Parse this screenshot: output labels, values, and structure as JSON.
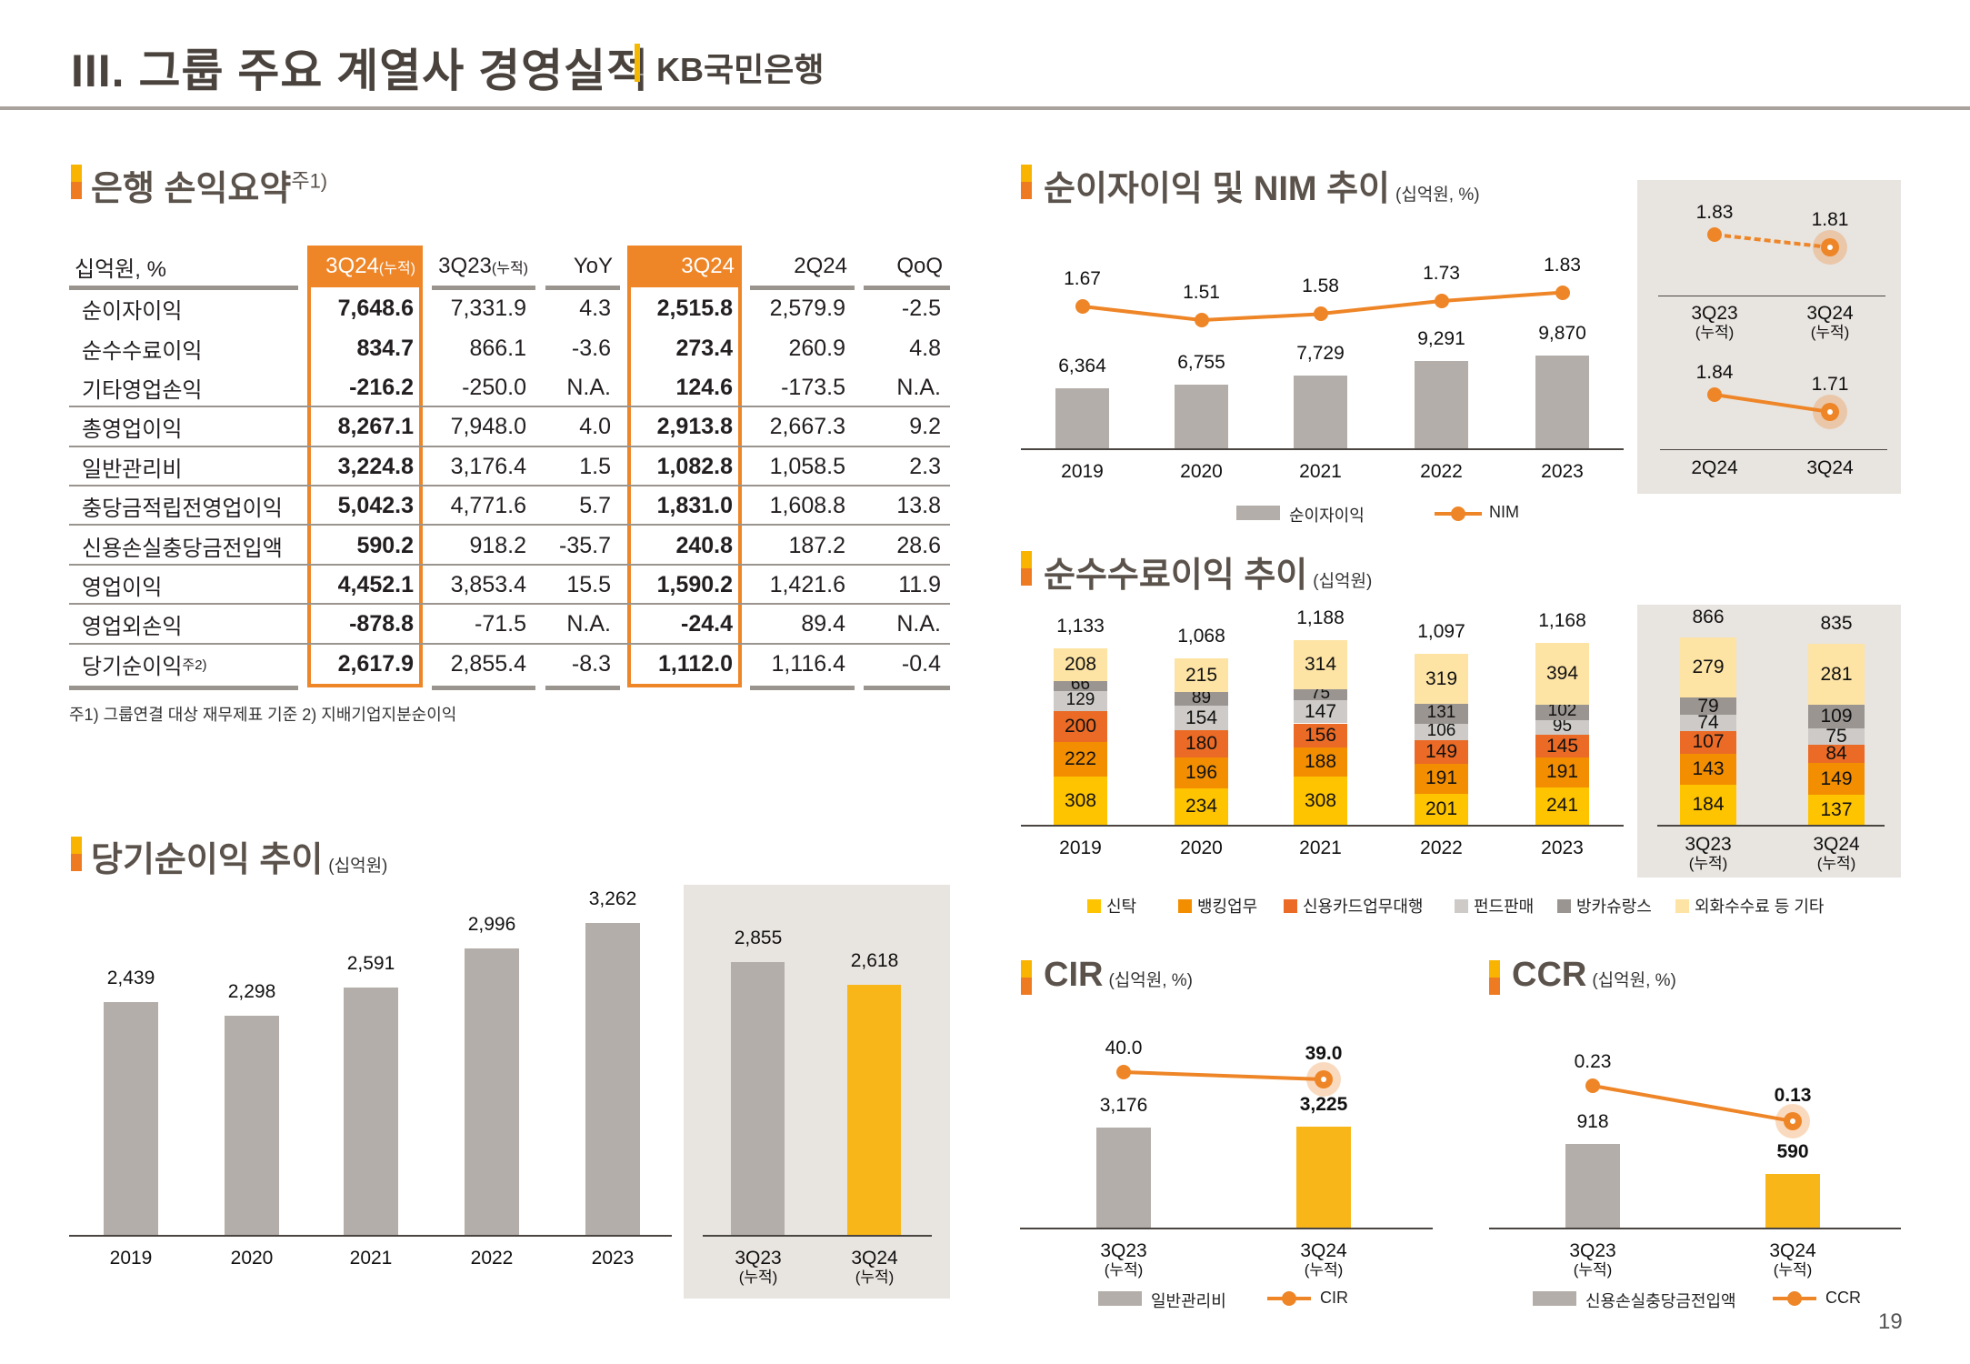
{
  "header": {
    "title": "III. 그룹 주요 계열사 경영실적",
    "subtitle": "KB국민은행",
    "page_number": "19"
  },
  "summary_table": {
    "title": "은행 손익요약",
    "title_note": "주1)",
    "unit_label": "십억원, %",
    "columns": [
      {
        "label": "3Q24",
        "suffix": "(누적)",
        "highlight": true
      },
      {
        "label": "3Q23",
        "suffix": "(누적)",
        "highlight": false
      },
      {
        "label": "YoY",
        "suffix": "",
        "highlight": false
      },
      {
        "label": "3Q24",
        "suffix": "",
        "highlight": true
      },
      {
        "label": "2Q24",
        "suffix": "",
        "highlight": false
      },
      {
        "label": "QoQ",
        "suffix": "",
        "highlight": false
      }
    ],
    "rows": [
      {
        "label": "순이자이익",
        "note": "",
        "values": [
          "7,648.6",
          "7,331.9",
          "4.3",
          "2,515.8",
          "2,579.9",
          "-2.5"
        ]
      },
      {
        "label": "순수수료이익",
        "note": "",
        "values": [
          "834.7",
          "866.1",
          "-3.6",
          "273.4",
          "260.9",
          "4.8"
        ]
      },
      {
        "label": "기타영업손익",
        "note": "",
        "values": [
          "-216.2",
          "-250.0",
          "N.A.",
          "124.6",
          "-173.5",
          "N.A."
        ]
      },
      {
        "label": "총영업이익",
        "note": "",
        "values": [
          "8,267.1",
          "7,948.0",
          "4.0",
          "2,913.8",
          "2,667.3",
          "9.2"
        ]
      },
      {
        "label": "일반관리비",
        "note": "",
        "values": [
          "3,224.8",
          "3,176.4",
          "1.5",
          "1,082.8",
          "1,058.5",
          "2.3"
        ]
      },
      {
        "label": "충당금적립전영업이익",
        "note": "",
        "values": [
          "5,042.3",
          "4,771.6",
          "5.7",
          "1,831.0",
          "1,608.8",
          "13.8"
        ]
      },
      {
        "label": "신용손실충당금전입액",
        "note": "",
        "values": [
          "590.2",
          "918.2",
          "-35.7",
          "240.8",
          "187.2",
          "28.6"
        ]
      },
      {
        "label": "영업이익",
        "note": "",
        "values": [
          "4,452.1",
          "3,853.4",
          "15.5",
          "1,590.2",
          "1,421.6",
          "11.9"
        ]
      },
      {
        "label": "영업외손익",
        "note": "",
        "values": [
          "-878.8",
          "-71.5",
          "N.A.",
          "-24.4",
          "89.4",
          "N.A."
        ]
      },
      {
        "label": "당기순이익",
        "note": "주2)",
        "values": [
          "2,617.9",
          "2,855.4",
          "-8.3",
          "1,112.0",
          "1,116.4",
          "-0.4"
        ]
      }
    ],
    "footnote": "주1) 그룹연결 대상 재무제표 기준   2) 지배기업지분순이익"
  },
  "colors": {
    "accent_orange": "#EE8527",
    "accent_yellow": "#F8B400",
    "bar_gray": "#B3AEA9",
    "bar_highlight": "#F9B618",
    "line_orange": "#EE8527",
    "panel_bg": "#E8E4E0"
  },
  "chart_data": [
    {
      "id": "net_income",
      "type": "bar",
      "title": "당기순이익 추이",
      "unit": "(십억원)",
      "categories": [
        "2019",
        "2020",
        "2021",
        "2022",
        "2023"
      ],
      "values": [
        2439,
        2298,
        2591,
        2996,
        3262
      ],
      "value_labels": [
        "2,439",
        "2,298",
        "2,591",
        "2,996",
        "3,262"
      ],
      "panel": {
        "categories": [
          [
            "3Q23",
            "(누적)"
          ],
          [
            "3Q24",
            "(누적)"
          ]
        ],
        "values": [
          2855,
          2618
        ],
        "value_labels": [
          "2,855",
          "2,618"
        ]
      }
    },
    {
      "id": "nii_nim",
      "type": "bar+line",
      "title": "순이자이익 및 NIM 추이",
      "unit": "(십억원, %)",
      "categories": [
        "2019",
        "2020",
        "2021",
        "2022",
        "2023"
      ],
      "series": [
        {
          "name": "순이자이익",
          "kind": "bar",
          "values": [
            6364,
            6755,
            7729,
            9291,
            9870
          ],
          "labels": [
            "6,364",
            "6,755",
            "7,729",
            "9,291",
            "9,870"
          ]
        },
        {
          "name": "NIM",
          "kind": "line",
          "values": [
            1.67,
            1.51,
            1.58,
            1.73,
            1.83
          ],
          "labels": [
            "1.67",
            "1.51",
            "1.58",
            "1.73",
            "1.83"
          ]
        }
      ],
      "panel": {
        "cumulative": {
          "categories": [
            [
              "3Q23",
              "(누적)"
            ],
            [
              "3Q24",
              "(누적)"
            ]
          ],
          "values": [
            1.83,
            1.81
          ],
          "labels": [
            "1.83",
            "1.81"
          ],
          "line_style": "dashed"
        },
        "quarterly": {
          "categories": [
            [
              "2Q24"
            ],
            [
              "3Q24"
            ]
          ],
          "values": [
            1.84,
            1.71
          ],
          "labels": [
            "1.84",
            "1.71"
          ],
          "line_style": "solid"
        }
      },
      "legend": [
        "순이자이익",
        "NIM"
      ]
    },
    {
      "id": "fee_income",
      "type": "stacked-bar",
      "title": "순수수료이익 추이",
      "unit": "(십억원)",
      "categories": [
        "2019",
        "2020",
        "2021",
        "2022",
        "2023"
      ],
      "totals": [
        "1,133",
        "1,068",
        "1,188",
        "1,097",
        "1,168"
      ],
      "series": [
        {
          "name": "신탁",
          "color": "#FFC400",
          "values": [
            308,
            234,
            308,
            201,
            241
          ]
        },
        {
          "name": "뱅킹업무",
          "color": "#F28E00",
          "values": [
            222,
            196,
            188,
            191,
            191
          ]
        },
        {
          "name": "신용카드업무대행",
          "color": "#EB6B26",
          "values": [
            200,
            180,
            156,
            149,
            145
          ]
        },
        {
          "name": "펀드판매",
          "color": "#CDCAC7",
          "values": [
            129,
            154,
            147,
            106,
            95
          ]
        },
        {
          "name": "방카슈랑스",
          "color": "#9A9591",
          "values": [
            66,
            89,
            75,
            131,
            102
          ]
        },
        {
          "name": "외화수수료 등 기타",
          "color": "#FDE3A4",
          "values": [
            208,
            215,
            314,
            319,
            394
          ]
        }
      ],
      "panel": {
        "categories": [
          [
            "3Q23",
            "(누적)"
          ],
          [
            "3Q24",
            "(누적)"
          ]
        ],
        "totals": [
          "866",
          "835"
        ],
        "values": [
          [
            184,
            137
          ],
          [
            143,
            149
          ],
          [
            107,
            84
          ],
          [
            74,
            75
          ],
          [
            79,
            109
          ],
          [
            279,
            281
          ]
        ]
      },
      "legend_position": "bottom"
    },
    {
      "id": "cir",
      "type": "bar+line",
      "title": "CIR",
      "unit": "(십억원, %)",
      "categories": [
        [
          "3Q23",
          "(누적)"
        ],
        [
          "3Q24",
          "(누적)"
        ]
      ],
      "series": [
        {
          "name": "일반관리비",
          "kind": "bar",
          "values": [
            3176,
            3225
          ],
          "labels": [
            "3,176",
            "3,225"
          ]
        },
        {
          "name": "CIR",
          "kind": "line",
          "values": [
            40.0,
            39.0
          ],
          "labels": [
            "40.0",
            "39.0"
          ]
        }
      ],
      "legend": [
        "일반관리비",
        "CIR"
      ]
    },
    {
      "id": "ccr",
      "type": "bar+line",
      "title": "CCR",
      "unit": "(십억원, %)",
      "categories": [
        [
          "3Q23",
          "(누적)"
        ],
        [
          "3Q24",
          "(누적)"
        ]
      ],
      "series": [
        {
          "name": "신용손실충당금전입액",
          "kind": "bar",
          "values": [
            918,
            590
          ],
          "labels": [
            "918",
            "590"
          ]
        },
        {
          "name": "CCR",
          "kind": "line",
          "values": [
            0.23,
            0.13
          ],
          "labels": [
            "0.23",
            "0.13"
          ]
        }
      ],
      "legend": [
        "신용손실충당금전입액",
        "CCR"
      ]
    }
  ]
}
